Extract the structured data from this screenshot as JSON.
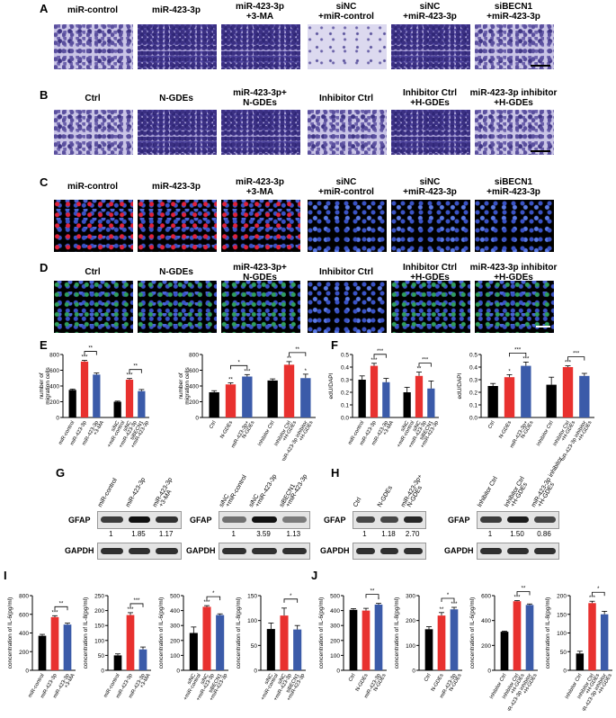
{
  "panels": {
    "A": {
      "letter": "A",
      "captions": [
        "miR-control",
        "miR-423-3p",
        "miR-423-3p\n+3-MA",
        "siNC\n+miR-control",
        "siNC\n+miR-423-3p",
        "siBECN1\n+miR-423-3p"
      ]
    },
    "B": {
      "letter": "B",
      "captions": [
        "Ctrl",
        "N-GDEs",
        "miR-423-3p+\nN-GDEs",
        "Inhibitor Ctrl",
        "Inhibitor Ctrl\n+H-GDEs",
        "miR-423-3p inhibitor\n+H-GDEs"
      ]
    },
    "C": {
      "letter": "C",
      "captions": [
        "miR-control",
        "miR-423-3p",
        "miR-423-3p\n+3-MA",
        "siNC\n+miR-control",
        "siNC\n+miR-423-3p",
        "siBECN1\n+miR-423-3p"
      ]
    },
    "D": {
      "letter": "D",
      "captions": [
        "Ctrl",
        "N-GDEs",
        "miR-423-3p+\nN-GDEs",
        "Inhibitor Ctrl",
        "Inhibitor Ctrl\n+H-GDEs",
        "miR-423-3p inhibitor\n+H-GDEs"
      ]
    },
    "E": {
      "letter": "E"
    },
    "F": {
      "letter": "F"
    },
    "G": {
      "letter": "G"
    },
    "H": {
      "letter": "H"
    },
    "I": {
      "letter": "I"
    },
    "J": {
      "letter": "J"
    }
  },
  "blots": {
    "G1": {
      "lanes": [
        "miR-control",
        "miR-423-3p",
        "miR-423-3p\n+3-MA"
      ],
      "values": [
        "1",
        "1.85",
        "1.17"
      ],
      "protein": "GFAP",
      "control": "GAPDH"
    },
    "G2": {
      "lanes": [
        "siNC\n+miR-control",
        "siNC\n+miR-423-3p",
        "siBECN1\n+miR-423-3p"
      ],
      "values": [
        "1",
        "3.59",
        "1.13"
      ],
      "protein": "GFAP",
      "control": "GAPDH"
    },
    "H1": {
      "lanes": [
        "Ctrl",
        "N-GDEs",
        "miR-423-3p+\nN-GDEs"
      ],
      "values": [
        "1",
        "1.18",
        "2.70"
      ],
      "protein": "GFAP",
      "control": "GAPDH"
    },
    "H2": {
      "lanes": [
        "Inhibitor Ctrl",
        "Inhibitor Ctrl\n+H-GDEs",
        "miR-423-3p inhibitor\n+H-GDEs"
      ],
      "values": [
        "1",
        "1.50",
        "0.86"
      ],
      "protein": "GFAP",
      "control": "GAPDH"
    }
  },
  "colors": {
    "black": "#000000",
    "red": "#e8312f",
    "blue": "#3b5ba9"
  },
  "chart_data": [
    {
      "id": "E1",
      "type": "bar",
      "ylabel": "number of\nmigration cells",
      "ylim": [
        0,
        800
      ],
      "yticks": [
        0,
        200,
        400,
        600,
        800
      ],
      "categories": [
        "miR-control",
        "miR-423-3p",
        "miR-423-3p\n+3-MA",
        "siNC\n+miR-control",
        "siNC\n+miR-423-3p",
        "siBECN1\n+miR-423-3p"
      ],
      "values": [
        350,
        710,
        545,
        200,
        480,
        335
      ],
      "errors": [
        10,
        15,
        20,
        8,
        15,
        20
      ],
      "colors": [
        "black",
        "red",
        "blue",
        "black",
        "red",
        "blue"
      ],
      "sig": [
        {
          "i": 1,
          "t": "***"
        },
        {
          "i": 4,
          "t": "***"
        }
      ],
      "brackets": [
        {
          "a": 1,
          "b": 2,
          "t": "**"
        },
        {
          "a": 4,
          "b": 5,
          "t": "**"
        }
      ]
    },
    {
      "id": "E2",
      "type": "bar",
      "ylabel": "number of\nmigration cells",
      "ylim": [
        0,
        800
      ],
      "yticks": [
        0,
        200,
        400,
        600,
        800
      ],
      "categories": [
        "Ctrl",
        "N-GDEs",
        "miR-423-3p+\nN-GDEs",
        "Inhibitor Ctrl",
        "Inhibitor Ctrl\n+H-GDEs",
        "miR-423-3p inhibitor\n+H-GDEs"
      ],
      "values": [
        320,
        420,
        520,
        470,
        670,
        500
      ],
      "errors": [
        20,
        20,
        25,
        20,
        40,
        50
      ],
      "colors": [
        "black",
        "red",
        "blue",
        "black",
        "red",
        "blue"
      ],
      "sig": [
        {
          "i": 1,
          "t": "**"
        },
        {
          "i": 2,
          "t": "***"
        },
        {
          "i": 4,
          "t": "**"
        },
        {
          "i": 5,
          "t": "*"
        }
      ],
      "brackets": [
        {
          "a": 1,
          "b": 2,
          "t": "*"
        },
        {
          "a": 4,
          "b": 5,
          "t": "**"
        }
      ]
    },
    {
      "id": "F1",
      "type": "bar",
      "ylabel": "edU/DAPI",
      "ylim": [
        0,
        0.5
      ],
      "yticks": [
        0.0,
        0.1,
        0.2,
        0.3,
        0.4,
        0.5
      ],
      "categories": [
        "miR-control",
        "miR-423-3p",
        "miR-423-3p\n+3-MA",
        "siNC\n+miR-control",
        "siNC\n+miR-423-3p",
        "siBECN1\n+miR-423-3p"
      ],
      "values": [
        0.3,
        0.41,
        0.28,
        0.2,
        0.33,
        0.23
      ],
      "errors": [
        0.03,
        0.02,
        0.03,
        0.04,
        0.03,
        0.06
      ],
      "colors": [
        "black",
        "red",
        "blue",
        "black",
        "red",
        "blue"
      ],
      "sig": [
        {
          "i": 1,
          "t": "***"
        },
        {
          "i": 4,
          "t": "**"
        }
      ],
      "brackets": [
        {
          "a": 1,
          "b": 2,
          "t": "***"
        },
        {
          "a": 4,
          "b": 5,
          "t": "***"
        }
      ]
    },
    {
      "id": "F2",
      "type": "bar",
      "ylabel": "edU/DAPI",
      "ylim": [
        0,
        0.5
      ],
      "yticks": [
        0.0,
        0.1,
        0.2,
        0.3,
        0.4,
        0.5
      ],
      "categories": [
        "Ctrl",
        "N-GDEs",
        "miR-423-3p+\nN-GDEs",
        "Inhibitor Ctrl",
        "Inhibitor Ctrl\n+H-GDEs",
        "miR-423-3p inhibitor\n+H-GDEs"
      ],
      "values": [
        0.25,
        0.32,
        0.41,
        0.26,
        0.4,
        0.33
      ],
      "errors": [
        0.02,
        0.02,
        0.03,
        0.06,
        0.01,
        0.02
      ],
      "colors": [
        "black",
        "red",
        "blue",
        "black",
        "red",
        "blue"
      ],
      "sig": [
        {
          "i": 1,
          "t": "*"
        },
        {
          "i": 2,
          "t": "***"
        },
        {
          "i": 4,
          "t": "***"
        }
      ],
      "brackets": [
        {
          "a": 1,
          "b": 2,
          "t": "***"
        },
        {
          "a": 4,
          "b": 5,
          "t": "***"
        }
      ]
    },
    {
      "id": "I1",
      "type": "bar",
      "ylabel": "concentration of IL-6(pg/ml)",
      "ylim": [
        0,
        800
      ],
      "yticks": [
        0,
        200,
        400,
        600,
        800
      ],
      "categories": [
        "miR-control",
        "miR-423-3p",
        "miR-423-3p\n+3-MA"
      ],
      "values": [
        370,
        570,
        490
      ],
      "errors": [
        15,
        15,
        15
      ],
      "colors": [
        "black",
        "red",
        "blue"
      ],
      "sig": [
        {
          "i": 1,
          "t": "***"
        }
      ],
      "brackets": [
        {
          "a": 1,
          "b": 2,
          "t": "**"
        }
      ]
    },
    {
      "id": "I2",
      "type": "bar",
      "ylabel": "concentration of IL-8(pg/ml)",
      "ylim": [
        0,
        250
      ],
      "yticks": [
        0,
        50,
        100,
        150,
        200,
        250
      ],
      "categories": [
        "miR-control",
        "miR-423-3p",
        "miR-423-3p\n+3-MA"
      ],
      "values": [
        50,
        185,
        70
      ],
      "errors": [
        5,
        8,
        8
      ],
      "colors": [
        "black",
        "red",
        "blue"
      ],
      "sig": [
        {
          "i": 1,
          "t": "***"
        }
      ],
      "brackets": [
        {
          "a": 1,
          "b": 2,
          "t": "***"
        }
      ]
    },
    {
      "id": "I3",
      "type": "bar",
      "ylabel": "concentration of IL-6(pg/ml)",
      "ylim": [
        0,
        500
      ],
      "yticks": [
        0,
        100,
        200,
        300,
        400,
        500
      ],
      "categories": [
        "siNC\n+miR-control",
        "siNC\n+miR-423-3p",
        "siBECN1\n+miR-423-3p"
      ],
      "values": [
        250,
        425,
        370
      ],
      "errors": [
        40,
        8,
        8
      ],
      "colors": [
        "black",
        "red",
        "blue"
      ],
      "sig": [
        {
          "i": 1,
          "t": "***"
        }
      ],
      "brackets": [
        {
          "a": 1,
          "b": 2,
          "t": "*"
        }
      ]
    },
    {
      "id": "I4",
      "type": "bar",
      "ylabel": "concentration of IL-8(pg/ml)",
      "ylim": [
        0,
        150
      ],
      "yticks": [
        0,
        50,
        100,
        150
      ],
      "categories": [
        "siNC\n+miR-control",
        "siNC\n+miR-423-3p",
        "siBECN1\n+miR-423-3p"
      ],
      "values": [
        83,
        110,
        82
      ],
      "errors": [
        12,
        15,
        8
      ],
      "colors": [
        "black",
        "red",
        "blue"
      ],
      "sig": [],
      "brackets": [
        {
          "a": 1,
          "b": 2,
          "t": "*"
        }
      ]
    },
    {
      "id": "J1",
      "type": "bar",
      "ylabel": "concentration of IL-6(pg/ml)",
      "ylim": [
        0,
        500
      ],
      "yticks": [
        0,
        100,
        200,
        300,
        400,
        500
      ],
      "categories": [
        "Ctrl",
        "N-GDEs",
        "miR-423-3p\nN-GDEs"
      ],
      "values": [
        405,
        400,
        440
      ],
      "errors": [
        8,
        15,
        8
      ],
      "colors": [
        "black",
        "red",
        "blue"
      ],
      "sig": [
        {
          "i": 2,
          "t": "*"
        }
      ],
      "brackets": [
        {
          "a": 1,
          "b": 2,
          "t": "**"
        }
      ]
    },
    {
      "id": "J2",
      "type": "bar",
      "ylabel": "concentration of IL-8(pg/ml)",
      "ylim": [
        0,
        300
      ],
      "yticks": [
        0,
        100,
        200,
        300
      ],
      "categories": [
        "Ctrl",
        "N-GDEs",
        "miR-423-3p\nN-GDEs"
      ],
      "values": [
        165,
        220,
        245
      ],
      "errors": [
        10,
        12,
        8
      ],
      "colors": [
        "black",
        "red",
        "blue"
      ],
      "sig": [
        {
          "i": 1,
          "t": "**"
        },
        {
          "i": 2,
          "t": "***"
        }
      ],
      "brackets": [
        {
          "a": 1,
          "b": 2,
          "t": "*"
        }
      ]
    },
    {
      "id": "J3",
      "type": "bar",
      "ylabel": "concentration of IL-6(pg/ml)",
      "ylim": [
        0,
        600
      ],
      "yticks": [
        0,
        200,
        400,
        600
      ],
      "categories": [
        "Inhibitor Ctrl",
        "Inhibitor Ctrl\n+H-GDEs",
        "miR-423-3p inhibitor\n+H-GDEs"
      ],
      "values": [
        310,
        555,
        525
      ],
      "errors": [
        5,
        5,
        8
      ],
      "colors": [
        "black",
        "red",
        "blue"
      ],
      "sig": [
        {
          "i": 1,
          "t": "***"
        }
      ],
      "brackets": [
        {
          "a": 1,
          "b": 2,
          "t": "**"
        }
      ]
    },
    {
      "id": "J4",
      "type": "bar",
      "ylabel": "concentration of IL-8(pg/ml)",
      "ylim": [
        0,
        200
      ],
      "yticks": [
        0,
        50,
        100,
        150,
        200
      ],
      "categories": [
        "Inhibitor Ctrl",
        "Inhibitor Ctrl\n+H-GDEs",
        "miR-423-3p inhibitor\n+H-GDEs"
      ],
      "values": [
        45,
        180,
        150
      ],
      "errors": [
        6,
        5,
        8
      ],
      "colors": [
        "black",
        "red",
        "blue"
      ],
      "sig": [
        {
          "i": 1,
          "t": "***"
        }
      ],
      "brackets": [
        {
          "a": 1,
          "b": 2,
          "t": "*"
        }
      ]
    }
  ]
}
